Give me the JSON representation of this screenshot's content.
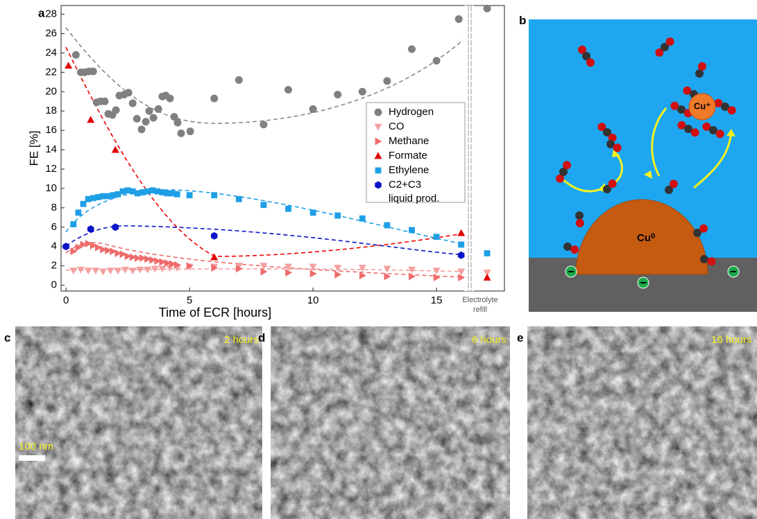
{
  "chart_data": {
    "type": "scatter",
    "panel_label": "a",
    "x_label": "Time of ECR [hours]",
    "y_label": "FE [%]",
    "xlim": [
      -0.2,
      17.75
    ],
    "ylim": [
      -0.6,
      28.9
    ],
    "xticks": [
      0,
      5,
      10,
      15
    ],
    "yticks": [
      0,
      2,
      4,
      6,
      8,
      10,
      12,
      14,
      16,
      18,
      20,
      22,
      24,
      26,
      28
    ],
    "annotations": [
      "Electrolyte",
      "refill"
    ],
    "legend": "center right",
    "series": [
      {
        "name": "Hydrogen",
        "color": "#808080",
        "marker": "circle",
        "x": [
          0.4,
          0.6,
          0.76,
          0.93,
          1.1,
          1.24,
          1.4,
          1.57,
          1.71,
          1.88,
          2.02,
          2.16,
          2.36,
          2.53,
          2.7,
          2.87,
          3.06,
          3.23,
          3.37,
          3.54,
          3.74,
          3.9,
          4.04,
          4.21,
          4.38,
          4.52,
          4.66,
          5.03,
          6,
          7,
          8,
          9,
          10,
          11,
          12,
          13,
          14,
          15,
          15.9,
          17.05
        ],
        "values": [
          23.8,
          22,
          22,
          22.1,
          22.1,
          18.9,
          19,
          19,
          17.7,
          17.6,
          18.1,
          19.6,
          19.7,
          19.9,
          18.8,
          17.2,
          16.1,
          16.9,
          18,
          17.3,
          18.2,
          19.5,
          19.6,
          19.3,
          17.4,
          16.8,
          15.7,
          15.9,
          19.3,
          21.2,
          16.6,
          20.2,
          18.2,
          19.7,
          20,
          21.1,
          24.4,
          23.2,
          27.5,
          28.6
        ]
      },
      {
        "name": "CO",
        "color": "#f4a0a0",
        "marker": "tri-down",
        "x": [
          0.3,
          0.6,
          0.9,
          1.2,
          1.5,
          1.8,
          2.1,
          2.4,
          2.7,
          3,
          3.3,
          3.6,
          3.9,
          4.2,
          4.5,
          5,
          6,
          7,
          8,
          9,
          10,
          11,
          12,
          13,
          14,
          15,
          16,
          17.05
        ],
        "values": [
          1.5,
          1.6,
          1.5,
          1.5,
          1.4,
          1.5,
          1.5,
          1.6,
          1.5,
          1.6,
          1.6,
          1.7,
          1.7,
          1.8,
          1.8,
          1.9,
          1.9,
          2,
          2,
          1.9,
          1.9,
          1.8,
          1.8,
          1.7,
          1.6,
          1.5,
          1.4,
          1.3
        ]
      },
      {
        "name": "Methane",
        "color": "#ef6b6b",
        "marker": "tri-right",
        "x": [
          0.3,
          0.5,
          0.7,
          0.9,
          1.1,
          1.3,
          1.5,
          1.7,
          1.9,
          2.1,
          2.3,
          2.5,
          2.7,
          2.9,
          3.1,
          3.3,
          3.5,
          3.7,
          3.9,
          4.1,
          4.3,
          4.5,
          5,
          6,
          7,
          8,
          9,
          10,
          11,
          12,
          13,
          14,
          15,
          16
        ],
        "values": [
          3.5,
          3.9,
          4.2,
          4.3,
          4.1,
          3.9,
          3.7,
          3.6,
          3.5,
          3.3,
          3.2,
          3,
          2.9,
          2.8,
          2.8,
          2.7,
          2.6,
          2.5,
          2.4,
          2.3,
          2.2,
          2.1,
          2,
          1.8,
          1.7,
          1.4,
          1.3,
          1.2,
          1.1,
          1,
          0.9,
          0.9,
          0.8,
          0.8
        ]
      },
      {
        "name": "Formate",
        "color": "#e00000",
        "marker": "tri-up",
        "x": [
          0.1,
          1,
          2,
          6,
          16,
          17.05
        ],
        "values": [
          22.7,
          17.1,
          14,
          2.9,
          5.4,
          0.8
        ]
      },
      {
        "name": "Ethylene",
        "color": "#1e9fe6",
        "marker": "square",
        "x": [
          0.3,
          0.5,
          0.7,
          0.9,
          1.1,
          1.3,
          1.5,
          1.7,
          1.9,
          2.1,
          2.3,
          2.5,
          2.7,
          2.9,
          3.1,
          3.3,
          3.5,
          3.7,
          3.9,
          4.1,
          4.3,
          4.5,
          5,
          6,
          7,
          8,
          9,
          10,
          11,
          12,
          13,
          14,
          15,
          16,
          17.05
        ],
        "values": [
          6.3,
          7.5,
          8.4,
          8.9,
          9,
          9.1,
          9.2,
          9.2,
          9.3,
          9.4,
          9.7,
          9.8,
          9.7,
          9.5,
          9.6,
          9.7,
          9.8,
          9.7,
          9.6,
          9.5,
          9.5,
          9.4,
          9.3,
          9.3,
          8.9,
          8.3,
          7.9,
          7.5,
          7.2,
          6.9,
          6.2,
          5.7,
          5,
          4.2,
          3.3
        ]
      },
      {
        "name": "C2+C3 liquid prod.",
        "color": "#0a14c8",
        "marker": "hexagon",
        "x": [
          0,
          1,
          2,
          6,
          16
        ],
        "values": [
          4,
          5.8,
          6,
          5.1,
          3.1
        ]
      }
    ]
  },
  "diagram": {
    "panel_label": "b",
    "cu0": "Cu⁰",
    "cuplus": "Cu⁺"
  },
  "images": [
    {
      "panel_label": "c",
      "caption": "2 hours",
      "scale": "100 nm"
    },
    {
      "panel_label": "d",
      "caption": "6 hours"
    },
    {
      "panel_label": "e",
      "caption": "16 hours"
    }
  ]
}
